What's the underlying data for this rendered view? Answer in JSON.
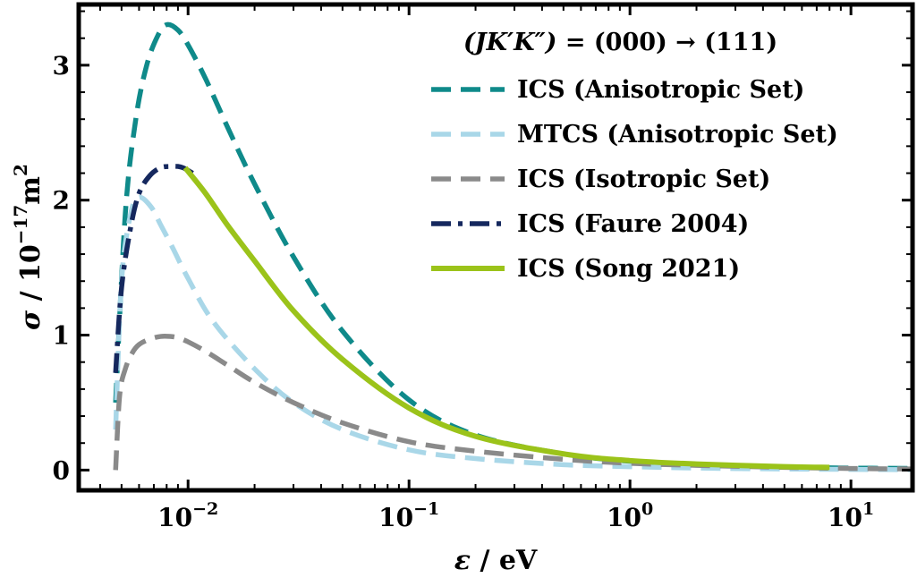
{
  "chart_data": {
    "type": "line",
    "title": "",
    "legend_title": {
      "lhs": "(JK′K″)",
      "eq": " = (000) → (111)"
    },
    "xlabel": {
      "symbol": "ε",
      "rest": " / eV"
    },
    "ylabel": {
      "symbol": "σ",
      "rest": " / 10",
      "exp": "−17",
      "unit": "m",
      "unit_exp": "2"
    },
    "x_scale": "log",
    "xlim": [
      0.0032,
      19
    ],
    "ylim": [
      -0.15,
      3.45
    ],
    "grid": false,
    "legend_position": "top-right",
    "x_ticks": [
      {
        "value": 0.01,
        "base": "10",
        "exp": "−2"
      },
      {
        "value": 0.1,
        "base": "10",
        "exp": "−1"
      },
      {
        "value": 1,
        "base": "10",
        "exp": "0"
      },
      {
        "value": 10,
        "base": "10",
        "exp": "1"
      }
    ],
    "y_ticks": [
      {
        "value": 0,
        "label": "0"
      },
      {
        "value": 1,
        "label": "1"
      },
      {
        "value": 2,
        "label": "2"
      },
      {
        "value": 3,
        "label": "3"
      }
    ],
    "series": [
      {
        "name": "ICS (Anisotropic Set)",
        "color": "#0f8a8a",
        "style": "dashed",
        "x": [
          0.0047,
          0.0052,
          0.0058,
          0.0065,
          0.0073,
          0.008,
          0.009,
          0.01,
          0.012,
          0.015,
          0.02,
          0.03,
          0.05,
          0.1,
          0.2,
          0.5,
          1,
          2,
          5,
          10,
          19
        ],
        "y": [
          0.5,
          1.9,
          2.6,
          3.0,
          3.22,
          3.3,
          3.26,
          3.15,
          2.9,
          2.55,
          2.12,
          1.58,
          1.03,
          0.52,
          0.26,
          0.12,
          0.065,
          0.04,
          0.022,
          0.015,
          0.012
        ]
      },
      {
        "name": "MTCS (Anisotropic Set)",
        "color": "#a9d7e8",
        "style": "dashed",
        "x": [
          0.0047,
          0.005,
          0.0055,
          0.006,
          0.0068,
          0.0075,
          0.0085,
          0.01,
          0.013,
          0.02,
          0.03,
          0.05,
          0.1,
          0.2,
          0.5,
          1,
          2,
          5,
          10,
          19
        ],
        "y": [
          0.3,
          1.4,
          1.9,
          2.02,
          1.95,
          1.82,
          1.65,
          1.42,
          1.1,
          0.75,
          0.5,
          0.3,
          0.15,
          0.085,
          0.04,
          0.025,
          0.015,
          0.008,
          0.005,
          0.003
        ]
      },
      {
        "name": "ICS (Isotropic Set)",
        "color": "#8a8a8a",
        "style": "dashed",
        "x": [
          0.0047,
          0.0049,
          0.0052,
          0.0056,
          0.006,
          0.0067,
          0.0075,
          0.0083,
          0.009,
          0.01,
          0.012,
          0.015,
          0.02,
          0.03,
          0.05,
          0.1,
          0.2,
          0.5,
          1,
          2,
          5,
          10,
          19
        ],
        "y": [
          0.0,
          0.55,
          0.75,
          0.87,
          0.93,
          0.97,
          0.99,
          0.99,
          0.98,
          0.95,
          0.88,
          0.78,
          0.65,
          0.5,
          0.35,
          0.21,
          0.14,
          0.08,
          0.05,
          0.035,
          0.02,
          0.012,
          0.008
        ]
      },
      {
        "name": "ICS (Faure 2004)",
        "color": "#15285e",
        "style": "dashdot",
        "x": [
          0.0047,
          0.005,
          0.0055,
          0.006,
          0.0067,
          0.0075,
          0.0083,
          0.009,
          0.0095,
          0.01,
          0.0105
        ],
        "y": [
          0.72,
          1.35,
          1.8,
          2.05,
          2.18,
          2.24,
          2.25,
          2.25,
          2.24,
          2.22,
          2.2
        ]
      },
      {
        "name": "ICS (Song 2021)",
        "color": "#9bc31a",
        "style": "solid",
        "x": [
          0.0097,
          0.012,
          0.015,
          0.02,
          0.03,
          0.05,
          0.1,
          0.2,
          0.5,
          1,
          2,
          5,
          8
        ],
        "y": [
          2.24,
          2.05,
          1.82,
          1.55,
          1.18,
          0.82,
          0.46,
          0.25,
          0.12,
          0.07,
          0.045,
          0.025,
          0.02
        ]
      }
    ]
  }
}
